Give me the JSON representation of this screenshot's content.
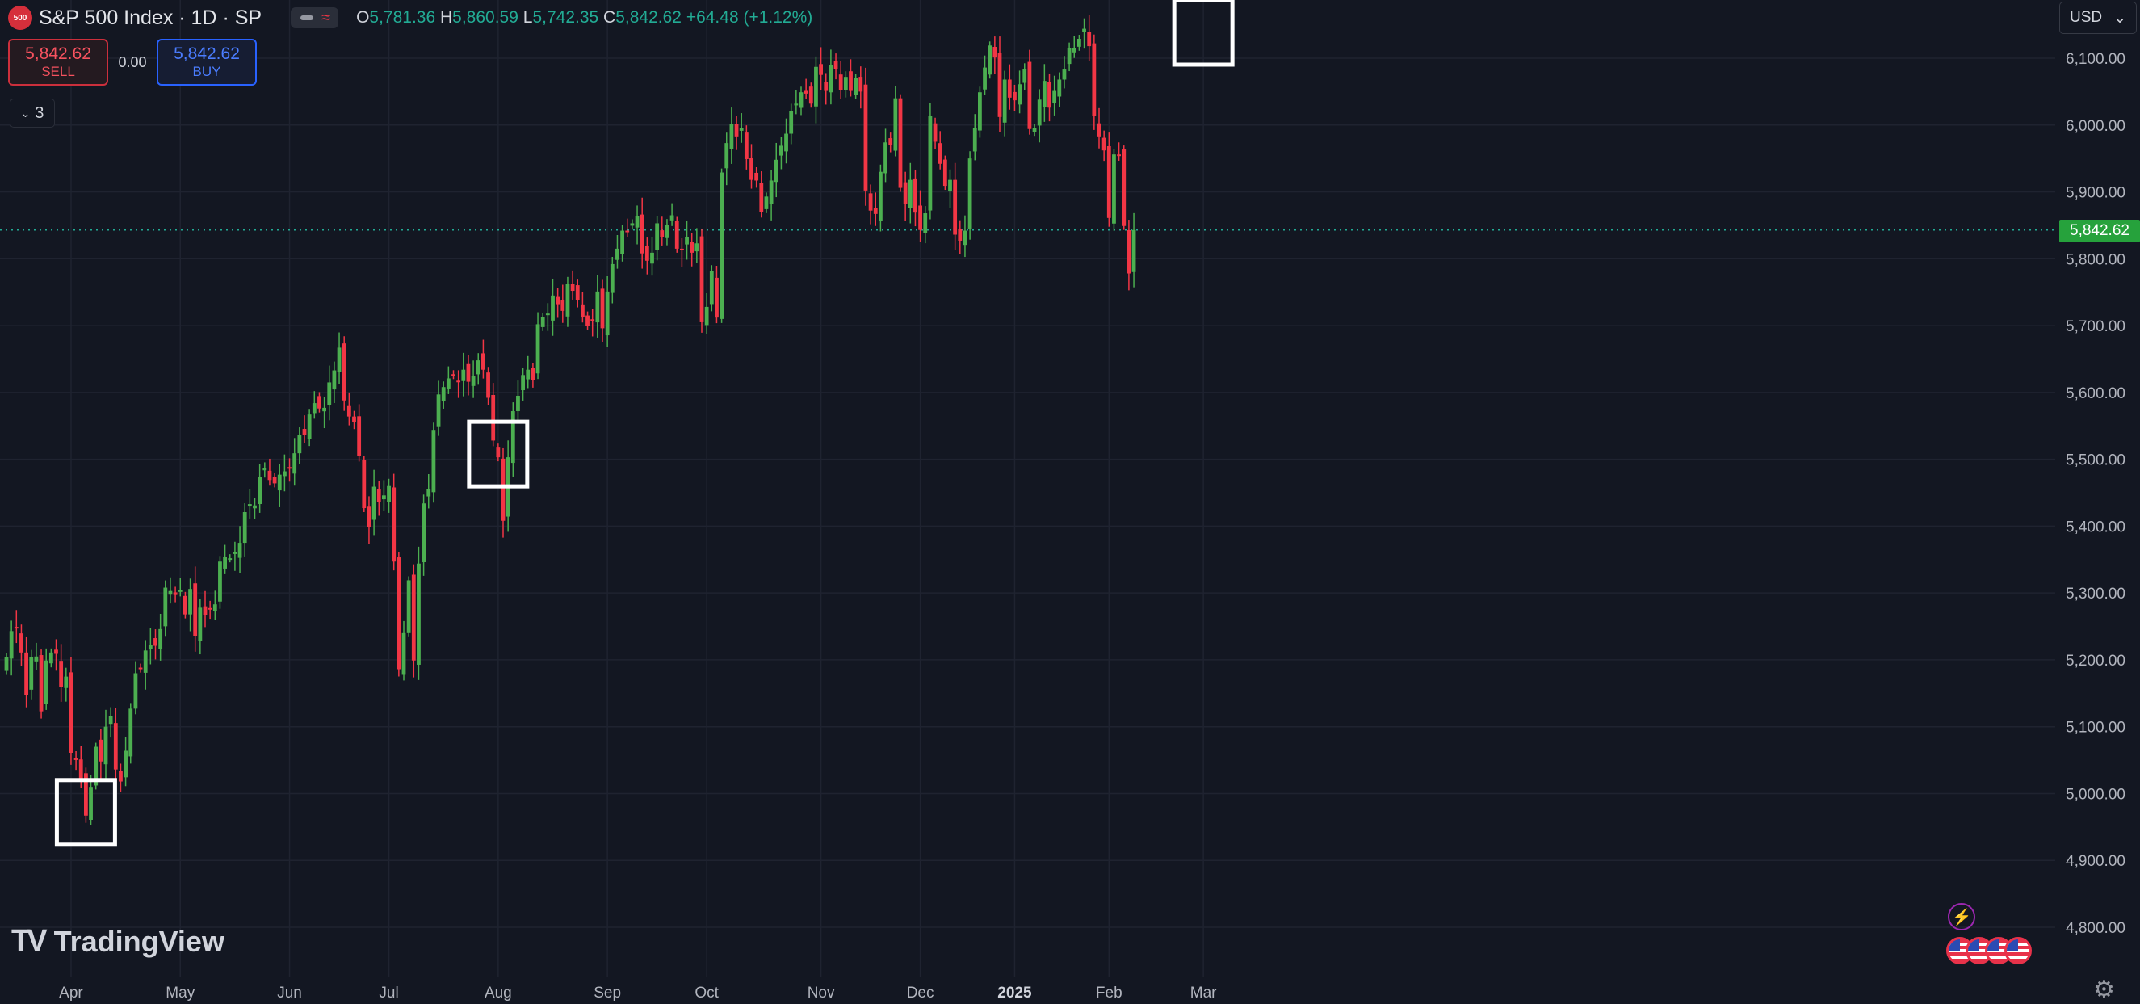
{
  "header": {
    "symbol_badge": "500",
    "title": "S&P 500 Index · 1D · SP",
    "ohlc": {
      "o_label": "O",
      "o": "5,781.36",
      "h_label": "H",
      "h": "5,860.59",
      "l_label": "L",
      "l": "5,742.35",
      "c_label": "C",
      "c": "5,842.62",
      "change": "+64.48 (+1.12%)"
    }
  },
  "trade": {
    "sell_price": "5,842.62",
    "sell_label": "SELL",
    "spread": "0.00",
    "buy_price": "5,842.62",
    "buy_label": "BUY"
  },
  "indicators_toggle": "3",
  "currency": "USD",
  "last_price": "5,842.62",
  "logo_text": "TradingView",
  "colors": {
    "up": "#4caf50",
    "down": "#f23645",
    "background": "#131722",
    "grid": "#1f2330",
    "highlight_box": "#ffffff"
  },
  "icons": [
    "eye-icon",
    "wave-icon",
    "chevron-down-icon",
    "flash-icon",
    "us-flag-icon",
    "gear-icon"
  ],
  "chart_data": {
    "type": "candlestick",
    "title": "S&P 500 Index · 1D · SP",
    "y_ticks": [
      "6,100.00",
      "6,000.00",
      "5,900.00",
      "5,800.00",
      "5,700.00",
      "5,600.00",
      "5,500.00",
      "5,400.00",
      "5,300.00",
      "5,200.00",
      "5,100.00",
      "5,000.00",
      "4,900.00",
      "4,800.00"
    ],
    "ylim": [
      4775,
      6190
    ],
    "x_ticks": [
      "Apr",
      "May",
      "Jun",
      "Jul",
      "Aug",
      "Sep",
      "Oct",
      "Nov",
      "Dec",
      "2025",
      "Feb",
      "Mar"
    ],
    "x_tick_index": [
      13,
      35,
      57,
      77,
      99,
      121,
      141,
      164,
      184,
      203,
      222,
      241
    ],
    "closes": [
      5204,
      5243,
      5248,
      5211,
      5147,
      5204,
      5205,
      5123,
      5199,
      5211,
      5209,
      5160,
      5175,
      5061,
      5051,
      5022,
      4967,
      5010,
      5070,
      5048,
      5100,
      5116,
      5036,
      5018,
      5064,
      5127,
      5180,
      5187,
      5214,
      5222,
      5221,
      5246,
      5308,
      5303,
      5297,
      5304,
      5268,
      5306,
      5235,
      5278,
      5267,
      5277,
      5283,
      5347,
      5354,
      5352,
      5361,
      5375,
      5421,
      5433,
      5431,
      5473,
      5487,
      5469,
      5464,
      5477,
      5482,
      5487,
      5509,
      5537,
      5537,
      5567,
      5584,
      5576,
      5577,
      5615,
      5633,
      5667,
      5588,
      5564,
      5556,
      5505,
      5427,
      5399,
      5459,
      5436,
      5446,
      5460,
      5347,
      5186,
      5240,
      5319,
      5199,
      5344,
      5434,
      5455,
      5544,
      5597,
      5608,
      5621,
      5626,
      5617,
      5634,
      5616,
      5625,
      5648,
      5634,
      5592,
      5528,
      5503,
      5408,
      5503,
      5572,
      5595,
      5626,
      5634,
      5618,
      5702,
      5713,
      5718,
      5745,
      5732,
      5722,
      5762,
      5752,
      5738,
      5713,
      5699,
      5709,
      5751,
      5696,
      5751,
      5792,
      5815,
      5842,
      5841,
      5853,
      5864,
      5808,
      5797,
      5809,
      5853,
      5833,
      5851,
      5865,
      5815,
      5813,
      5832,
      5809,
      5823,
      5705,
      5728,
      5782,
      5712,
      5929,
      5973,
      6001,
      5983,
      5995,
      5949,
      5918,
      5917,
      5870,
      5893,
      5917,
      5948,
      5969,
      5987,
      6021,
      6032,
      6049,
      6047,
      6032,
      6087,
      6075,
      6051,
      6090,
      6084,
      6052,
      6072,
      6051,
      6070,
      6050,
      5902,
      5872,
      5867,
      5930,
      5974,
      5970,
      6040,
      5906,
      5882,
      5918,
      5869,
      5843,
      5868,
      6013,
      5975,
      5942,
      5909,
      5918,
      5836,
      5827,
      5842,
      5950,
      5996,
      6049,
      6086,
      6119,
      6101,
      6012,
      6068,
      6041,
      6037,
      6061,
      6084,
      5994,
      5995,
      6038,
      6066,
      6026,
      6051,
      6068,
      6083,
      6115,
      6115,
      6129,
      6144,
      6118,
      6013,
      5983,
      5962,
      5861,
      5956,
      5955,
      5849,
      5778,
      5843
    ],
    "highlight_boxes_index": [
      16,
      99,
      241
    ]
  }
}
